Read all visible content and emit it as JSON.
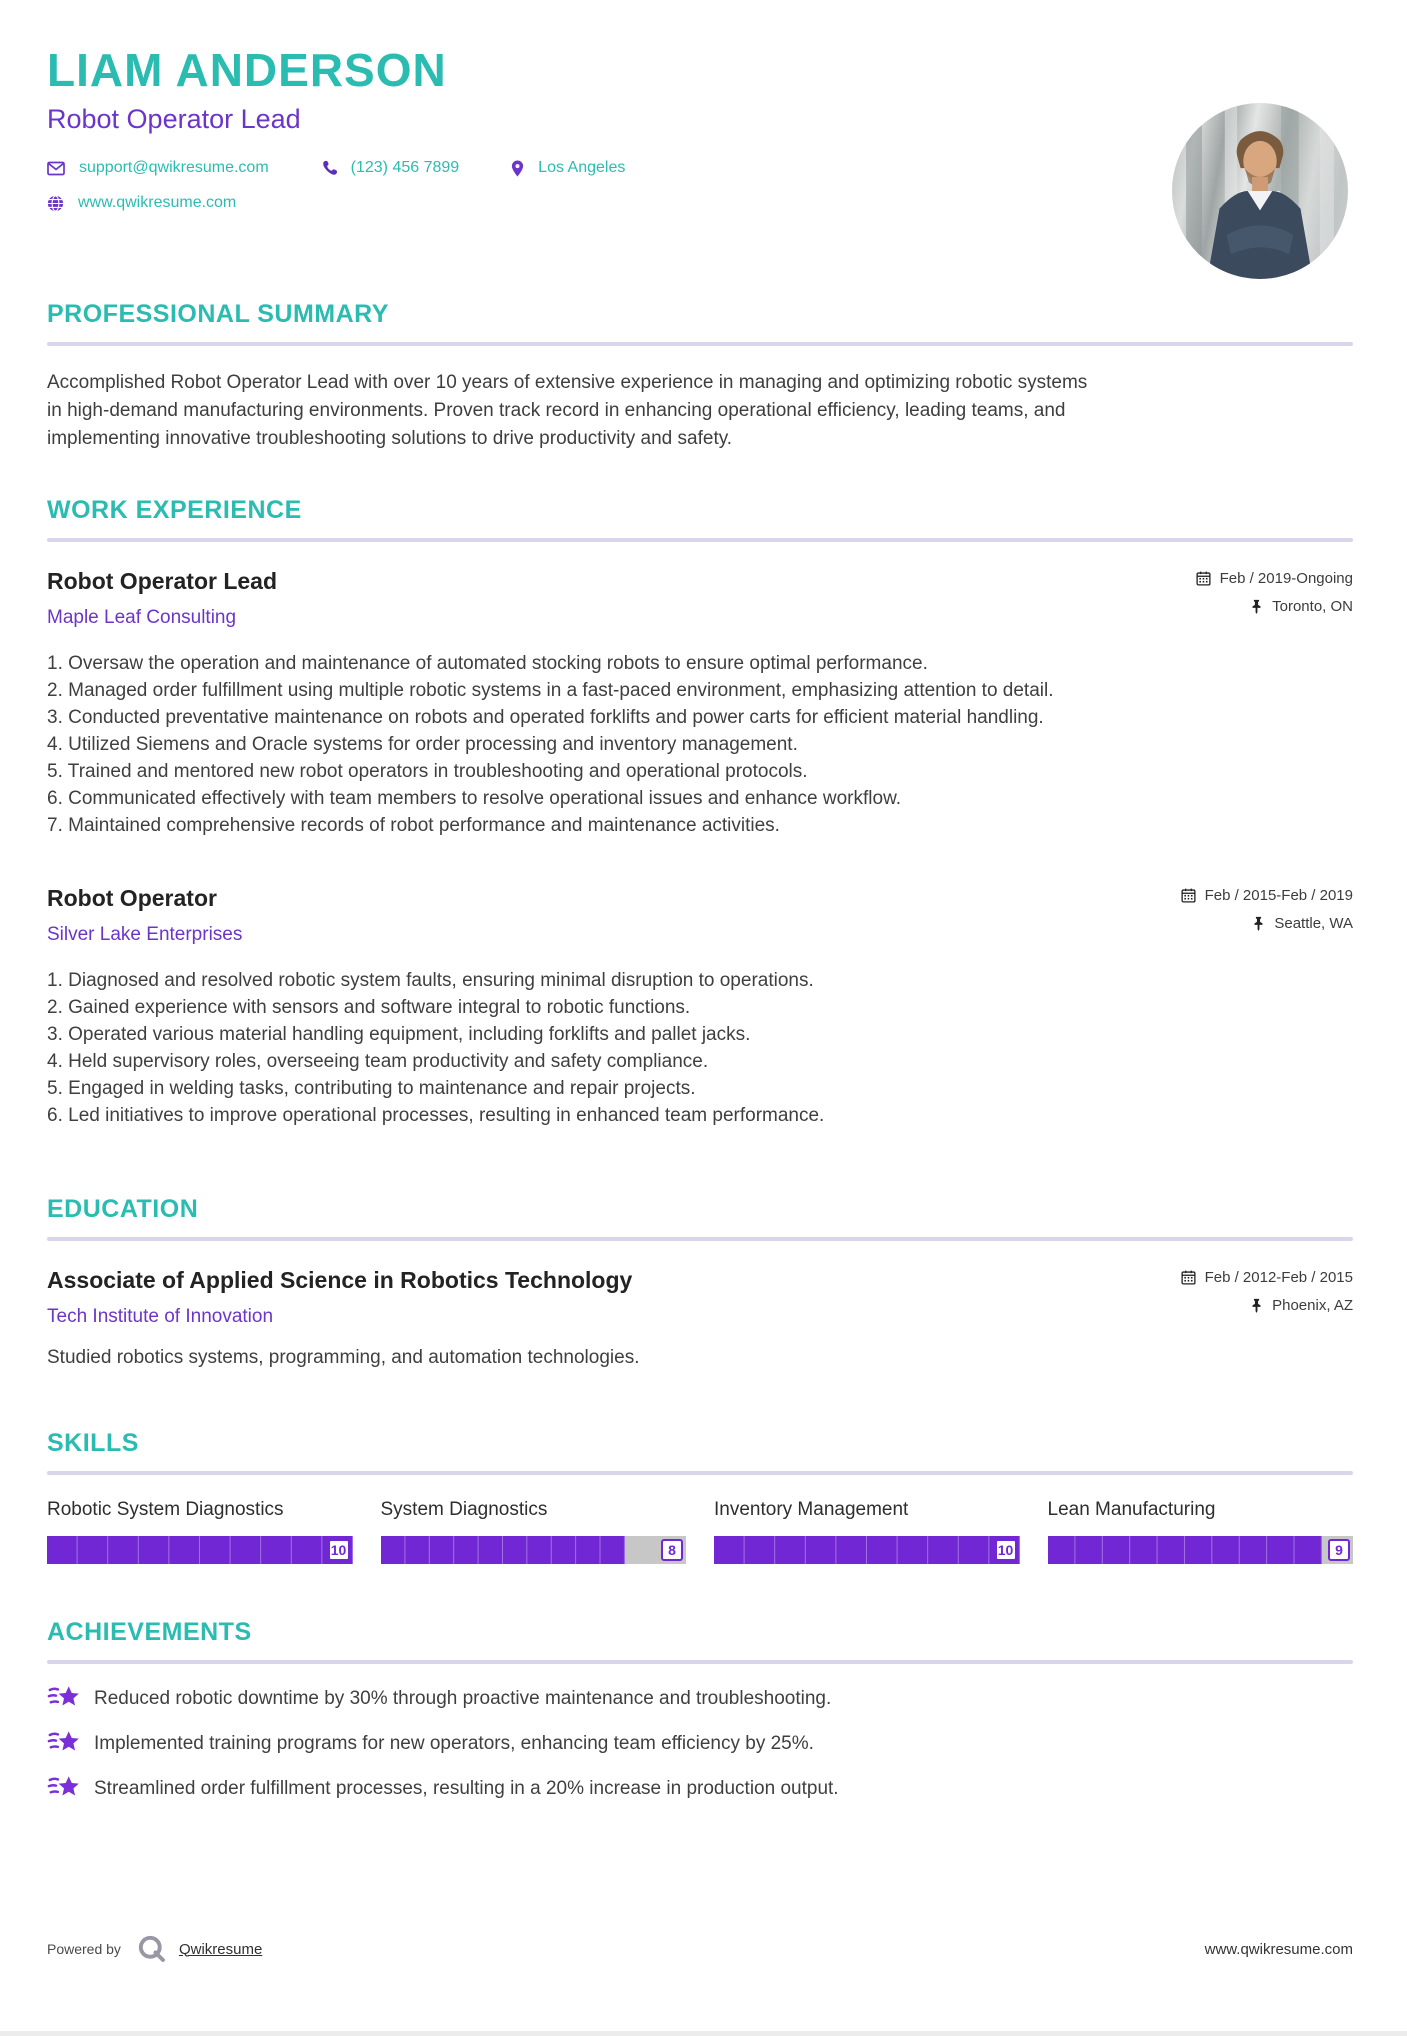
{
  "colors": {
    "accent_teal": "#2bbcb1",
    "accent_purple": "#6c35c9",
    "bar_fill": "#7127d4",
    "bar_track": "#c7c7c7",
    "divider": "#dad5ea",
    "body_text": "#3e3e3e"
  },
  "header": {
    "name": "LIAM ANDERSON",
    "role": "Robot Operator Lead",
    "email": "support@qwikresume.com",
    "phone": "(123) 456 7899",
    "location": "Los Angeles",
    "website": "www.qwikresume.com",
    "photo_alt": "portrait-photo"
  },
  "summary": {
    "heading": "PROFESSIONAL SUMMARY",
    "text": "Accomplished Robot Operator Lead with over 10 years of extensive experience in managing and optimizing robotic systems in high-demand manufacturing environments. Proven track record in enhancing operational efficiency, leading teams, and implementing innovative troubleshooting solutions to drive productivity and safety."
  },
  "work": {
    "heading": "WORK EXPERIENCE",
    "jobs": [
      {
        "title": "Robot Operator Lead",
        "company": "Maple Leaf Consulting",
        "date": "Feb / 2019-Ongoing",
        "location": "Toronto, ON",
        "bullets": [
          "Oversaw the operation and maintenance of automated stocking robots to ensure optimal performance.",
          "Managed order fulfillment using multiple robotic systems in a fast-paced environment, emphasizing attention to detail.",
          "Conducted preventative maintenance on robots and operated forklifts and power carts for efficient material handling.",
          "Utilized Siemens and Oracle systems for order processing and inventory management.",
          "Trained and mentored new robot operators in troubleshooting and operational protocols.",
          "Communicated effectively with team members to resolve operational issues and enhance workflow.",
          "Maintained comprehensive records of robot performance and maintenance activities."
        ]
      },
      {
        "title": "Robot Operator",
        "company": "Silver Lake Enterprises",
        "date": "Feb / 2015-Feb / 2019",
        "location": "Seattle, WA",
        "bullets": [
          "Diagnosed and resolved robotic system faults, ensuring minimal disruption to operations.",
          "Gained experience with sensors and software integral to robotic functions.",
          "Operated various material handling equipment, including forklifts and pallet jacks.",
          "Held supervisory roles, overseeing team productivity and safety compliance.",
          "Engaged in welding tasks, contributing to maintenance and repair projects.",
          "Led initiatives to improve operational processes, resulting in enhanced team performance."
        ]
      }
    ]
  },
  "education": {
    "heading": "EDUCATION",
    "degree": "Associate of Applied Science in Robotics Technology",
    "school": "Tech Institute of Innovation",
    "date": "Feb / 2012-Feb / 2015",
    "location": "Phoenix, AZ",
    "description": "Studied robotics systems, programming, and automation technologies."
  },
  "skills": {
    "heading": "SKILLS",
    "max": 10,
    "items": [
      {
        "label": "Robotic System Diagnostics",
        "value": 10
      },
      {
        "label": "System Diagnostics",
        "value": 8
      },
      {
        "label": "Inventory Management",
        "value": 10
      },
      {
        "label": "Lean Manufacturing",
        "value": 9
      }
    ]
  },
  "achievements": {
    "heading": "ACHIEVEMENTS",
    "items": [
      "Reduced robotic downtime by 30% through proactive maintenance and troubleshooting.",
      "Implemented training programs for new operators, enhancing team efficiency by 25%.",
      "Streamlined order fulfillment processes, resulting in a 20% increase in production output."
    ]
  },
  "footer": {
    "powered_by": "Powered by",
    "brand": "Qwikresume",
    "site": "www.qwikresume.com"
  }
}
